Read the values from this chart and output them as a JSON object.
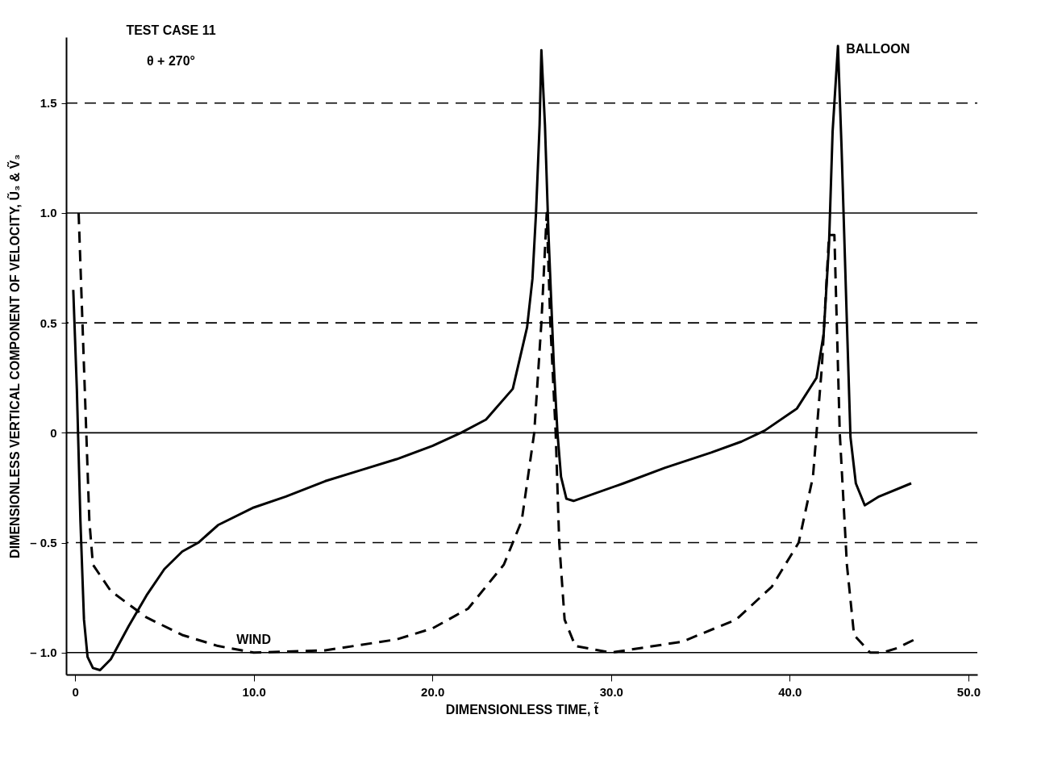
{
  "chart_data": {
    "type": "line",
    "xlabel": "DIMENSIONLESS TIME, t̃",
    "ylabel": "DIMENSIONLESS VERTICAL COMPONENT OF VELOCITY, Ũ₃ & Ṽ₃",
    "annotations": [
      "TEST CASE 11",
      "θ + 270°"
    ],
    "xlim": [
      -0.5,
      50.5
    ],
    "ylim": [
      -1.1,
      1.8
    ],
    "xticks": [
      0,
      {
        "value": 10,
        "label": "10.0"
      },
      {
        "value": 20,
        "label": "20.0"
      },
      {
        "value": 30,
        "label": "30.0"
      },
      {
        "value": 40,
        "label": "40.0"
      },
      {
        "value": 50,
        "label": "50.0"
      }
    ],
    "yticks": [
      {
        "value": -1.0,
        "label": "– 1.0"
      },
      {
        "value": -0.5,
        "label": "– 0.5"
      },
      0,
      0.5,
      {
        "value": 1.0,
        "label": "1.0"
      },
      1.5
    ],
    "grid": false,
    "marker": "none",
    "ref_lines": [
      {
        "axis": "y",
        "value": 1.5,
        "label": null,
        "line_style": "dashed",
        "color": "#000000"
      },
      {
        "axis": "y",
        "value": 1.0,
        "label": null,
        "line_style": "solid",
        "color": "#000000"
      },
      {
        "axis": "y",
        "value": 0.5,
        "label": null,
        "line_style": "dashed",
        "color": "#000000"
      },
      {
        "axis": "y",
        "value": 0,
        "label": null,
        "line_style": "solid",
        "color": "#000000"
      },
      {
        "axis": "y",
        "value": -0.5,
        "label": null,
        "line_style": "dashed",
        "color": "#000000"
      },
      {
        "axis": "y",
        "value": -1.0,
        "label": null,
        "line_style": "solid",
        "color": "#000000"
      }
    ],
    "series": [
      {
        "name": "BALLOON",
        "color": "#000000",
        "line_style": "solid",
        "x": [
          -0.1,
          0.1,
          0.3,
          0.5,
          0.7,
          1.0,
          1.4,
          2.0,
          3.0,
          4.0,
          5.0,
          6.0,
          6.9,
          8.0,
          10.0,
          11.8,
          14.0,
          16.0,
          18.0,
          20.0,
          21.6,
          23.0,
          24.5,
          25.3,
          25.6,
          25.8,
          26.0,
          26.1,
          26.3,
          26.5,
          26.8,
          27.0,
          27.2,
          27.5,
          27.9,
          30.7,
          33.0,
          35.6,
          37.3,
          38.6,
          40.4,
          41.5,
          41.9,
          42.2,
          42.4,
          42.7,
          42.9,
          43.2,
          43.4,
          43.7,
          44.2,
          45.0,
          46.8
        ],
        "values": [
          0.65,
          0.2,
          -0.4,
          -0.85,
          -1.02,
          -1.07,
          -1.08,
          -1.03,
          -0.88,
          -0.74,
          -0.62,
          -0.54,
          -0.5,
          -0.42,
          -0.34,
          -0.29,
          -0.22,
          -0.17,
          -0.12,
          -0.06,
          0.0,
          0.06,
          0.2,
          0.48,
          0.7,
          1.0,
          1.4,
          1.74,
          1.4,
          0.9,
          0.3,
          0.0,
          -0.2,
          -0.3,
          -0.31,
          -0.23,
          -0.16,
          -0.09,
          -0.04,
          0.01,
          0.11,
          0.25,
          0.45,
          0.86,
          1.37,
          1.76,
          1.3,
          0.5,
          -0.02,
          -0.23,
          -0.33,
          -0.29,
          -0.23
        ]
      },
      {
        "name": "WIND",
        "color": "#000000",
        "line_style": "dashed",
        "x": [
          0.2,
          0.5,
          0.8,
          1.0,
          2.0,
          4.0,
          6.0,
          8.0,
          10.0,
          14.0,
          18.0,
          20.0,
          22.0,
          24.0,
          25.0,
          25.7,
          26.1,
          26.4,
          26.6,
          26.9,
          27.1,
          27.4,
          28.0,
          30.0,
          34.0,
          37.0,
          39.0,
          40.5,
          41.3,
          41.8,
          42.2,
          42.5,
          42.8,
          43.2,
          43.6,
          44.5,
          45.2,
          46.0,
          47.0
        ],
        "values": [
          1.0,
          0.3,
          -0.4,
          -0.6,
          -0.72,
          -0.84,
          -0.92,
          -0.97,
          -1.0,
          -0.99,
          -0.94,
          -0.89,
          -0.8,
          -0.6,
          -0.4,
          0.0,
          0.5,
          1.0,
          0.5,
          0.0,
          -0.5,
          -0.85,
          -0.97,
          -1.0,
          -0.95,
          -0.85,
          -0.7,
          -0.5,
          -0.2,
          0.3,
          0.9,
          0.9,
          0.0,
          -0.6,
          -0.92,
          -1.0,
          -1.0,
          -0.98,
          -0.94
        ]
      }
    ]
  }
}
